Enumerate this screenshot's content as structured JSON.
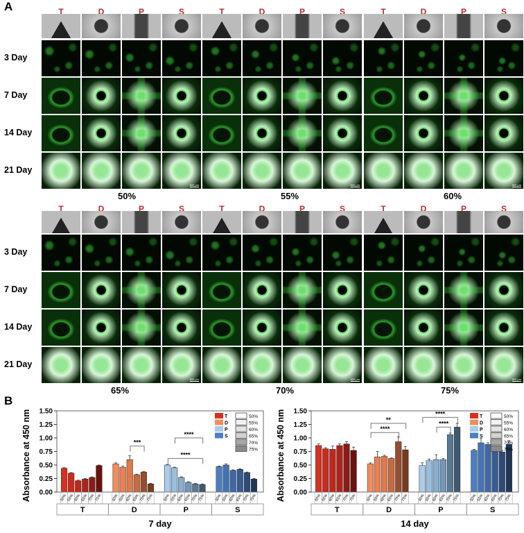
{
  "panel_a": {
    "letter": "A",
    "columns": [
      "T",
      "D",
      "P",
      "S"
    ],
    "rows": [
      "3 Day",
      "7 Day",
      "14 Day",
      "21 Day"
    ],
    "blocks_top": [
      "50%",
      "55%",
      "60%"
    ],
    "blocks_bottom": [
      "65%",
      "70%",
      "75%"
    ],
    "scale_bar": "500 μm"
  },
  "panel_b": {
    "letter": "B"
  },
  "chart_data": [
    {
      "type": "bar",
      "title": "7 day",
      "ylabel": "Absorbance at 450 nm",
      "ylim": [
        0,
        1.5
      ],
      "yticks": [
        "0.00",
        "0.25",
        "0.50",
        "0.75",
        "1.00",
        "1.25",
        "1.50"
      ],
      "groups": [
        "T",
        "D",
        "P",
        "S"
      ],
      "categories": [
        "50%",
        "55%",
        "60%",
        "65%",
        "70%",
        "75%"
      ],
      "series": [
        {
          "name": "T",
          "values": [
            0.44,
            0.35,
            0.21,
            0.24,
            0.27,
            0.49
          ],
          "errors": [
            0.01,
            0.01,
            0.01,
            0.01,
            0.01,
            0.01
          ]
        },
        {
          "name": "D",
          "values": [
            0.52,
            0.46,
            0.6,
            0.32,
            0.37,
            0.15
          ],
          "errors": [
            0.02,
            0.02,
            0.07,
            0.01,
            0.01,
            0.01
          ]
        },
        {
          "name": "P",
          "values": [
            0.5,
            0.45,
            0.27,
            0.18,
            0.15,
            0.14
          ],
          "errors": [
            0.01,
            0.01,
            0.01,
            0.01,
            0.01,
            0.01
          ]
        },
        {
          "name": "S",
          "values": [
            0.47,
            0.5,
            0.4,
            0.42,
            0.36,
            0.24
          ],
          "errors": [
            0.01,
            0.02,
            0.01,
            0.01,
            0.01,
            0.01
          ]
        }
      ],
      "significance": [
        {
          "label": "***",
          "group": "D",
          "from": "60%",
          "to": "70%",
          "y": 0.85
        },
        {
          "label": "****",
          "group": "P",
          "from": "55%",
          "to": "75%",
          "y": 1.0
        },
        {
          "label": "****",
          "group": "P",
          "from": "50%",
          "to": "75%",
          "y": 0.62
        }
      ],
      "legend": {
        "position": "top-right",
        "groups": [
          "T",
          "D",
          "P",
          "S"
        ],
        "levels": [
          "50%",
          "55%",
          "60%",
          "65%",
          "70%",
          "75%"
        ]
      }
    },
    {
      "type": "bar",
      "title": "14 day",
      "ylabel": "Absorbance at 450 nm",
      "ylim": [
        0,
        1.5
      ],
      "yticks": [
        "0.00",
        "0.25",
        "0.50",
        "0.75",
        "1.00",
        "1.25",
        "1.50"
      ],
      "groups": [
        "T",
        "D",
        "P",
        "S"
      ],
      "categories": [
        "50%",
        "55%",
        "60%",
        "65%",
        "70%",
        "75%"
      ],
      "series": [
        {
          "name": "T",
          "values": [
            0.86,
            0.8,
            0.79,
            0.86,
            0.89,
            0.77
          ],
          "errors": [
            0.03,
            0.02,
            0.06,
            0.03,
            0.04,
            0.06
          ]
        },
        {
          "name": "D",
          "values": [
            0.52,
            0.65,
            0.66,
            0.62,
            0.93,
            0.78
          ],
          "errors": [
            0.02,
            0.1,
            0.02,
            0.01,
            0.09,
            0.06
          ]
        },
        {
          "name": "P",
          "values": [
            0.49,
            0.58,
            0.6,
            0.6,
            1.06,
            1.2
          ],
          "errors": [
            0.05,
            0.03,
            0.09,
            0.02,
            0.03,
            0.07
          ]
        },
        {
          "name": "S",
          "values": [
            0.77,
            0.91,
            0.88,
            0.77,
            0.74,
            0.88
          ],
          "errors": [
            0.02,
            0.08,
            0.03,
            0.01,
            0.03,
            0.07
          ]
        }
      ],
      "significance": [
        {
          "label": "**",
          "group": "D",
          "from": "50%",
          "to": "75%",
          "y": 1.27
        },
        {
          "label": "****",
          "group": "D",
          "from": "50%",
          "to": "70%",
          "y": 1.1
        },
        {
          "label": "****",
          "group": "P",
          "from": "50%",
          "to": "75%",
          "y": 1.38
        },
        {
          "label": "****",
          "group": "P",
          "from": "60%",
          "to": "70%",
          "y": 1.2
        }
      ],
      "legend": {
        "position": "top-right",
        "groups": [
          "T",
          "D",
          "P",
          "S"
        ],
        "levels": [
          "50%",
          "55%",
          "60%",
          "65%",
          "70%",
          "75%"
        ]
      }
    }
  ],
  "colors": {
    "T": [
      "#d8301f",
      "#cc2a1d",
      "#c0261b",
      "#b12219",
      "#8e1a14",
      "#6a120e"
    ],
    "D": [
      "#f28c5c",
      "#e98052",
      "#e07a4c",
      "#c96a40",
      "#9a4c2c",
      "#7a3a1e"
    ],
    "P": [
      "#a9cdea",
      "#98bfe0",
      "#86afd2",
      "#7398b8",
      "#5a7a94",
      "#3f5a70"
    ],
    "S": [
      "#4c7ec2",
      "#4474b6",
      "#3e69a8",
      "#365c94",
      "#2c4a7a",
      "#1f3558"
    ],
    "fluorescence": "#3ad13a"
  }
}
